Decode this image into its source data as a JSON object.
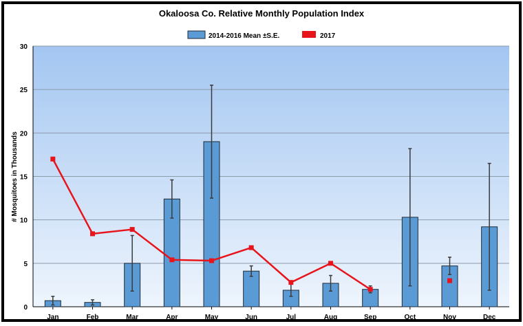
{
  "chart_data": {
    "type": "bar",
    "title": "Okaloosa Co. Relative Monthly Population Index",
    "ylabel": "# Mosquitoes in Thousands",
    "xlabel": "",
    "ylim": [
      0,
      30
    ],
    "yticks": [
      0,
      5,
      10,
      15,
      20,
      25,
      30
    ],
    "grid": true,
    "legend_position": "top",
    "categories": [
      "Jan",
      "Feb",
      "Mar",
      "Apr",
      "May",
      "Jun",
      "Jul",
      "Aug",
      "Sep",
      "Oct",
      "Nov",
      "Dec"
    ],
    "series": [
      {
        "name": "2014-2016 Mean ±S.E.",
        "type": "bar",
        "color": "#5b9bd5",
        "values": [
          0.7,
          0.5,
          5.0,
          12.4,
          19.0,
          4.1,
          1.9,
          2.7,
          2.0,
          10.3,
          4.7,
          9.2
        ],
        "error": [
          0.5,
          0.3,
          3.2,
          2.2,
          6.5,
          0.6,
          0.7,
          0.9,
          0.4,
          7.9,
          1.0,
          7.3
        ]
      },
      {
        "name": "2017",
        "type": "line",
        "color": "#e8141b",
        "values": [
          17.0,
          8.4,
          8.9,
          5.4,
          5.3,
          6.8,
          2.8,
          5.0,
          2.0,
          null,
          3.0,
          null
        ]
      }
    ]
  }
}
